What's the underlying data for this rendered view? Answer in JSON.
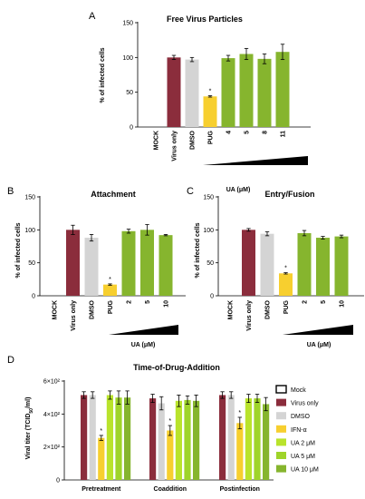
{
  "figure": {
    "background": "#ffffff"
  },
  "colors": {
    "mock": "#ffffff",
    "virus": "#8b2d3c",
    "dmso": "#d4d4d4",
    "ifn": "#f7cf2f",
    "ua2": "#b9e32c",
    "ua5": "#9fd42a",
    "ua10": "#86b52e"
  },
  "chart_data": [
    {
      "id": "A",
      "panel_label": "A",
      "type": "bar",
      "title": "Free Virus Particles",
      "ylabel": "% of infected cells",
      "ylim": [
        0,
        150
      ],
      "yticks": [
        "0",
        "50",
        "100",
        "150"
      ],
      "categories": [
        "MOCK",
        "Virus only",
        "DMSO",
        "PUG",
        "4",
        "5",
        "8",
        "11"
      ],
      "values": [
        0,
        100,
        97,
        44,
        99,
        105,
        98,
        108
      ],
      "errors": [
        0,
        3,
        3,
        1,
        4,
        8,
        7,
        11
      ],
      "colors": [
        "#ffffff",
        "#8b2d3c",
        "#d4d4d4",
        "#f7cf2f",
        "#86b52e",
        "#86b52e",
        "#86b52e",
        "#86b52e"
      ],
      "star_index": 3,
      "star": "*",
      "xlabel": "UA (μM)",
      "wedge_from": 4
    },
    {
      "id": "B",
      "panel_label": "B",
      "type": "bar",
      "title": "Attachment",
      "ylabel": "% of infected cells",
      "ylim": [
        0,
        150
      ],
      "yticks": [
        "0",
        "50",
        "100",
        "150"
      ],
      "categories": [
        "MOCK",
        "Virus only",
        "DMSO",
        "PUG",
        "2",
        "5",
        "10"
      ],
      "values": [
        0,
        100,
        88,
        17,
        98,
        100,
        92
      ],
      "errors": [
        0,
        7,
        5,
        1,
        3,
        8,
        1
      ],
      "colors": [
        "#ffffff",
        "#8b2d3c",
        "#d4d4d4",
        "#f7cf2f",
        "#86b52e",
        "#86b52e",
        "#86b52e"
      ],
      "star_index": 3,
      "star": "*",
      "xlabel": "UA (μM)",
      "wedge_from": 4
    },
    {
      "id": "C",
      "panel_label": "C",
      "type": "bar",
      "title": "Entry/Fusion",
      "ylabel": "% of infected cells",
      "ylim": [
        0,
        150
      ],
      "yticks": [
        "0",
        "50",
        "100",
        "150"
      ],
      "categories": [
        "MOCK",
        "Virus only",
        "DMSO",
        "PUG",
        "2",
        "5",
        "10"
      ],
      "values": [
        0,
        100,
        94,
        34,
        95,
        88,
        90
      ],
      "errors": [
        0,
        2,
        3,
        1,
        4,
        2,
        2
      ],
      "colors": [
        "#ffffff",
        "#8b2d3c",
        "#d4d4d4",
        "#f7cf2f",
        "#86b52e",
        "#86b52e",
        "#86b52e"
      ],
      "star_index": 3,
      "star": "*",
      "xlabel": "UA (μM)",
      "wedge_from": 4
    },
    {
      "id": "D",
      "panel_label": "D",
      "type": "bar",
      "title": "Time-of-Drug-Addition",
      "ylabel": "Viral titer (TCID50/ml)",
      "ylim": [
        0,
        600
      ],
      "yticks": [
        "0",
        "2×10²",
        "4×10²",
        "6×10²"
      ],
      "categories": [
        "Pretreatment",
        "Coaddition",
        "Postinfection"
      ],
      "series": [
        {
          "name": "Mock",
          "color": "#ffffff",
          "values": [
            0,
            0,
            0
          ],
          "errors": [
            0,
            0,
            0
          ]
        },
        {
          "name": "Virus only",
          "color": "#8b2d3c",
          "values": [
            515,
            495,
            515
          ],
          "errors": [
            20,
            25,
            20
          ]
        },
        {
          "name": "DMSO",
          "color": "#d4d4d4",
          "values": [
            515,
            465,
            515
          ],
          "errors": [
            20,
            40,
            20
          ]
        },
        {
          "name": "IFN-α",
          "color": "#f7cf2f",
          "values": [
            255,
            300,
            345
          ],
          "errors": [
            15,
            30,
            35
          ]
        },
        {
          "name": "UA 2 μM",
          "color": "#b9e32c",
          "values": [
            515,
            480,
            495
          ],
          "errors": [
            25,
            35,
            25
          ]
        },
        {
          "name": "UA 5 μM",
          "color": "#9fd42a",
          "values": [
            500,
            485,
            495
          ],
          "errors": [
            40,
            25,
            25
          ]
        },
        {
          "name": "UA 10 μM",
          "color": "#86b52e",
          "values": [
            500,
            480,
            460
          ],
          "errors": [
            40,
            35,
            40
          ]
        }
      ],
      "star_series": 3,
      "star": "*",
      "legend_position": "right"
    }
  ]
}
